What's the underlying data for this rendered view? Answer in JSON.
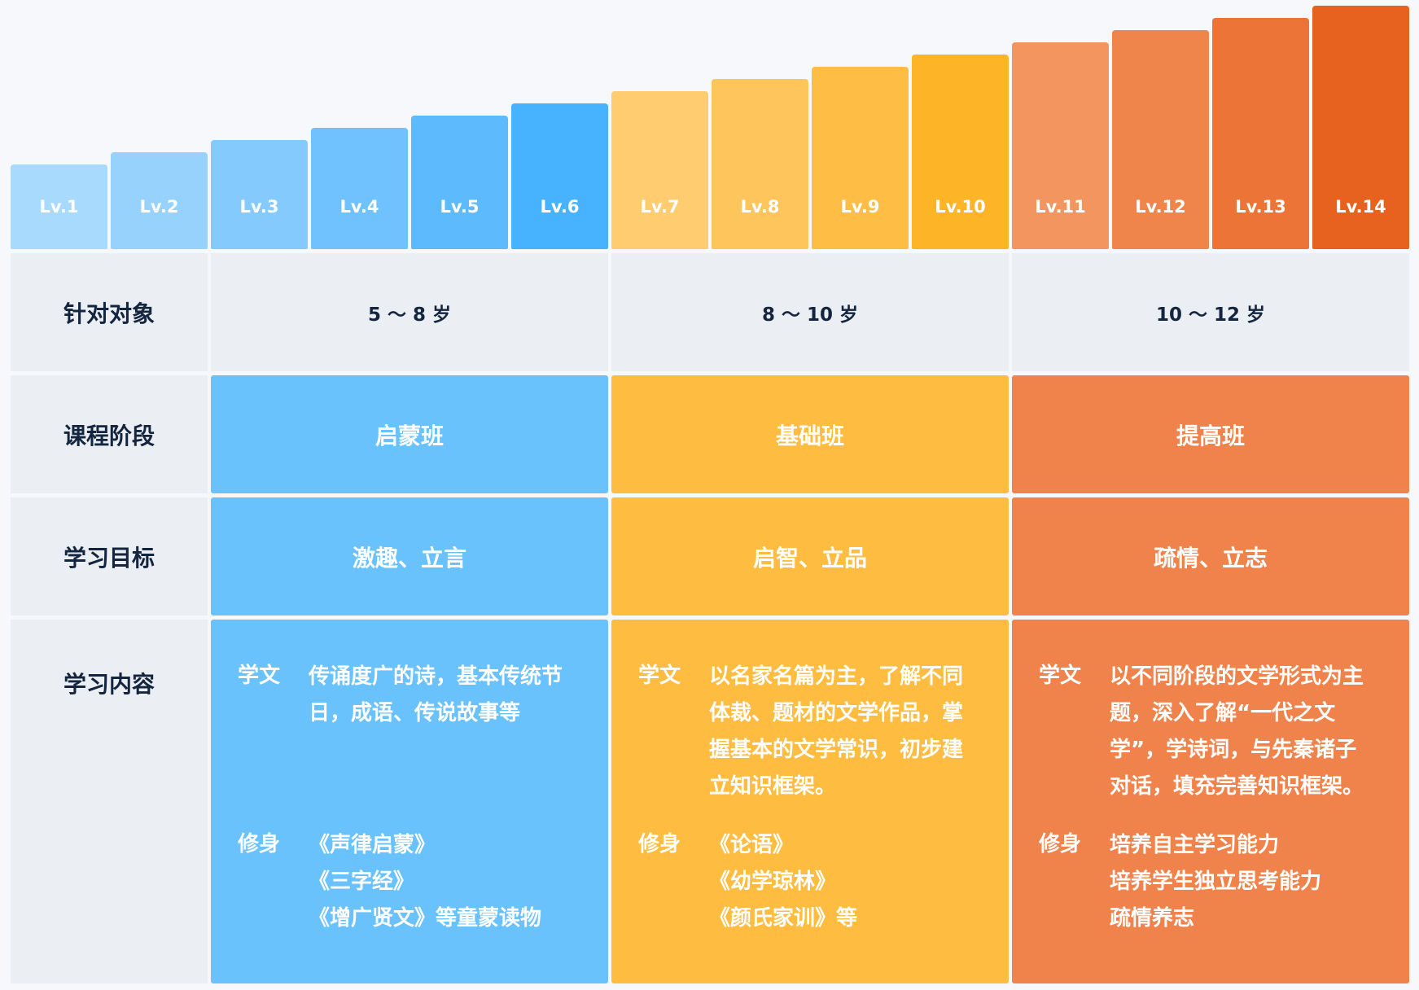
{
  "levels": [
    {
      "label": "Lv.1",
      "color": "#a7dafc"
    },
    {
      "label": "Lv.2",
      "color": "#96d2fc"
    },
    {
      "label": "Lv.3",
      "color": "#84cafc"
    },
    {
      "label": "Lv.4",
      "color": "#6fc2fd"
    },
    {
      "label": "Lv.5",
      "color": "#5cbafd"
    },
    {
      "label": "Lv.6",
      "color": "#47b2fe"
    },
    {
      "label": "Lv.7",
      "color": "#ffcc70"
    },
    {
      "label": "Lv.8",
      "color": "#fec55c"
    },
    {
      "label": "Lv.9",
      "color": "#febd45"
    },
    {
      "label": "Lv.10",
      "color": "#feb427"
    },
    {
      "label": "Lv.11",
      "color": "#f3955e"
    },
    {
      "label": "Lv.12",
      "color": "#ef854a"
    },
    {
      "label": "Lv.13",
      "color": "#ec7436"
    },
    {
      "label": "Lv.14",
      "color": "#e8621f"
    }
  ],
  "rows": {
    "audience_label": "针对对象",
    "stage_label": "课程阶段",
    "goal_label": "学习目标",
    "content_label": "学习内容"
  },
  "columns": [
    {
      "age": "5 ～ 8 岁",
      "stage": "启蒙班",
      "goal": "激趣、立言",
      "color": "#6ac2fd",
      "study_tag": "学文",
      "study_lines": [
        "传诵度广的诗，基本传统节",
        "日，成语、传说故事等"
      ],
      "cultivate_tag": "修身",
      "cultivate_lines": [
        "《声律启蒙》",
        "《三字经》",
        "《增广贤文》等童蒙读物"
      ]
    },
    {
      "age": "8 ～ 10 岁",
      "stage": "基础班",
      "goal": "启智、立品",
      "color": "#febd40",
      "study_tag": "学文",
      "study_lines": [
        "以名家名篇为主，了解不同",
        "体裁、题材的文学作品，掌",
        "握基本的文学常识，初步建",
        "立知识框架。"
      ],
      "cultivate_tag": "修身",
      "cultivate_lines": [
        "《论语》",
        "《幼学琼林》",
        "《颜氏家训》等"
      ]
    },
    {
      "age": "10 ～ 12 岁",
      "stage": "提高班",
      "goal": "疏情、立志",
      "color": "#ef834b",
      "study_tag": "学文",
      "study_lines": [
        "以不同阶段的文学形式为主",
        "题，深入了解“一代之文",
        "学”，学诗词，与先秦诸子",
        "对话，填充完善知识框架。"
      ],
      "cultivate_tag": "修身",
      "cultivate_lines": [
        "培养自主学习能力",
        "培养学生独立思考能力",
        "疏情养志"
      ]
    }
  ]
}
